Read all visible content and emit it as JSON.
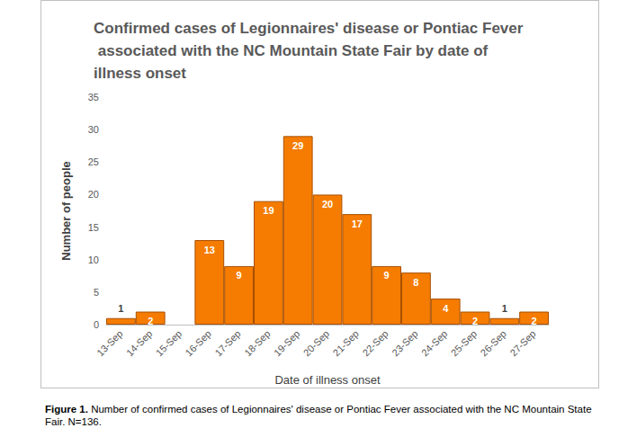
{
  "chart_data": {
    "type": "bar",
    "title": "Confirmed cases of Legionnaires' disease or Pontiac Fever associated with the NC Mountain State Fair by date of illness onset",
    "x_label": "Date of illness onset",
    "y_label": "Number of people",
    "categories": [
      "13-Sep",
      "14-Sep",
      "15-Sep",
      "16-Sep",
      "17-Sep",
      "18-Sep",
      "19-Sep",
      "20-Sep",
      "21-Sep",
      "22-Sep",
      "23-Sep",
      "24-Sep",
      "25-Sep",
      "26-Sep",
      "27-Sep"
    ],
    "values": [
      1,
      2,
      null,
      13,
      9,
      19,
      29,
      20,
      17,
      9,
      8,
      4,
      2,
      1,
      2
    ],
    "color": "#f57c00",
    "ylim": [
      0,
      35
    ],
    "yticks": [
      0,
      5,
      10,
      15,
      20,
      25,
      30,
      35
    ],
    "grid": false,
    "data_labels": true,
    "caption_label": "Figure 1.",
    "caption": "Number of confirmed cases of Legionnaires' disease or Pontiac Fever associated with the NC Mountain State Fair. N=136."
  }
}
